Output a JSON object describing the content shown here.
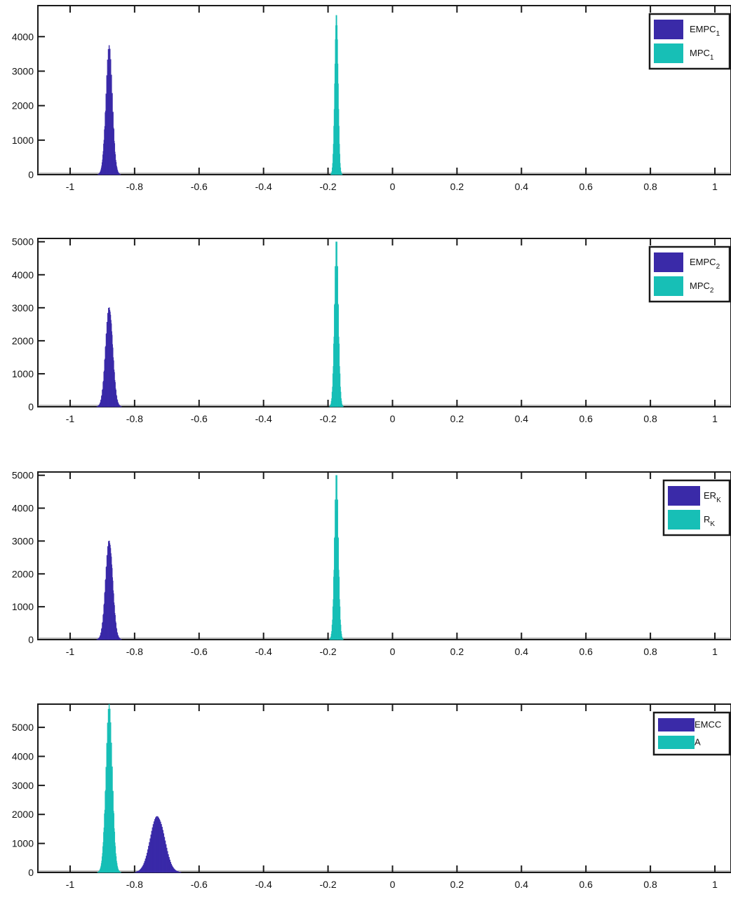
{
  "colors": {
    "series1": "#3a2aa8",
    "series2": "#17bfb6",
    "axis": "#1a1a1a",
    "background": "#ffffff"
  },
  "chart_data": [
    {
      "type": "histogram",
      "xlim": [
        -1.1,
        1.05
      ],
      "ylim": [
        0,
        4900
      ],
      "xticks": [
        "-1",
        "-0.8",
        "-0.6",
        "-0.4",
        "-0.2",
        "0",
        "0.2",
        "0.4",
        "0.6",
        "0.8",
        "1"
      ],
      "yticks": [
        "0",
        "1000",
        "2000",
        "3000",
        "4000"
      ],
      "legend_position": "top-right",
      "series": [
        {
          "legend_base": "EMPC",
          "legend_sub": "1",
          "center": -0.88,
          "sd": 0.01,
          "peak": 3750,
          "color_key": "series1"
        },
        {
          "legend_base": "MPC",
          "legend_sub": "1",
          "center": -0.175,
          "sd": 0.005,
          "peak": 4900,
          "color_key": "series2"
        }
      ]
    },
    {
      "type": "histogram",
      "xlim": [
        -1.1,
        1.05
      ],
      "ylim": [
        0,
        5100
      ],
      "xticks": [
        "-1",
        "-0.8",
        "-0.6",
        "-0.4",
        "-0.2",
        "0",
        "0.2",
        "0.4",
        "0.6",
        "0.8",
        "1"
      ],
      "yticks": [
        "0",
        "1000",
        "2000",
        "3000",
        "4000",
        "5000"
      ],
      "legend_position": "top-right",
      "series": [
        {
          "legend_base": "EMPC",
          "legend_sub": "2",
          "center": -0.88,
          "sd": 0.011,
          "peak": 3150,
          "color_key": "series1"
        },
        {
          "legend_base": "MPC",
          "legend_sub": "2",
          "center": -0.175,
          "sd": 0.006,
          "peak": 5100,
          "color_key": "series2"
        }
      ]
    },
    {
      "type": "histogram",
      "xlim": [
        -1.1,
        1.05
      ],
      "ylim": [
        0,
        5100
      ],
      "xticks": [
        "-1",
        "-0.8",
        "-0.6",
        "-0.4",
        "-0.2",
        "0",
        "0.2",
        "0.4",
        "0.6",
        "0.8",
        "1"
      ],
      "yticks": [
        "0",
        "1000",
        "2000",
        "3000",
        "4000",
        "5000"
      ],
      "legend_position": "top-right",
      "series": [
        {
          "legend_base": "ER",
          "legend_sub": "K",
          "center": -0.88,
          "sd": 0.011,
          "peak": 3150,
          "color_key": "series1"
        },
        {
          "legend_base": "R",
          "legend_sub": "K",
          "center": -0.175,
          "sd": 0.006,
          "peak": 5100,
          "color_key": "series2"
        }
      ]
    },
    {
      "type": "histogram",
      "xlim": [
        -1.1,
        1.05
      ],
      "ylim": [
        0,
        5800
      ],
      "xticks": [
        "-1",
        "-0.8",
        "-0.6",
        "-0.4",
        "-0.2",
        "0",
        "0.2",
        "0.4",
        "0.6",
        "0.8",
        "1"
      ],
      "yticks": [
        "0",
        "1000",
        "2000",
        "3000",
        "4000",
        "5000"
      ],
      "legend_position": "top-right",
      "series": [
        {
          "legend_base": "EMCC",
          "legend_sub": "",
          "center": -0.73,
          "sd": 0.022,
          "peak": 2000,
          "color_key": "series1"
        },
        {
          "legend_base": "A",
          "legend_sub": "",
          "center": -0.88,
          "sd": 0.01,
          "peak": 5800,
          "color_key": "series2"
        }
      ]
    }
  ]
}
